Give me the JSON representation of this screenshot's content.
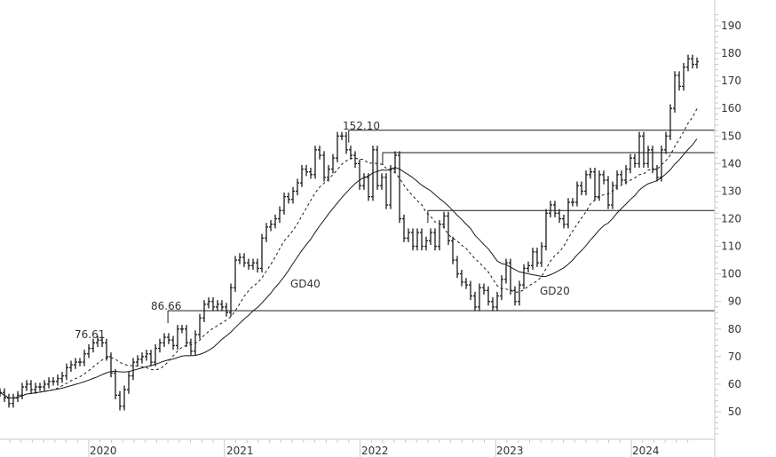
{
  "chart_data": {
    "type": "bar",
    "subtype": "price-bars-with-moving-averages",
    "period_start": "2019-05",
    "period_end": "2024-06",
    "close": [
      57,
      55,
      53,
      55,
      56,
      59,
      60,
      58,
      59,
      59,
      60,
      61,
      61,
      62,
      63,
      66,
      67,
      68,
      68,
      71,
      73,
      75,
      76,
      75,
      70,
      64,
      56,
      52,
      58,
      63,
      68,
      69,
      70,
      71,
      68,
      73,
      75,
      77,
      76,
      74,
      80,
      80,
      75,
      72,
      78,
      84,
      89,
      90,
      88,
      89,
      88,
      86,
      95,
      105,
      106,
      104,
      103,
      104,
      102,
      113,
      117,
      118,
      120,
      123,
      128,
      127,
      130,
      133,
      138,
      137,
      136,
      145,
      143,
      135,
      138,
      142,
      150,
      150,
      145,
      143,
      140,
      132,
      135,
      128,
      145,
      132,
      135,
      125,
      138,
      143,
      120,
      113,
      115,
      110,
      115,
      110,
      112,
      115,
      110,
      118,
      121,
      112,
      105,
      100,
      97,
      96,
      92,
      88,
      95,
      94,
      90,
      88,
      92,
      98,
      104,
      94,
      90,
      96,
      102,
      103,
      108,
      104,
      110,
      122,
      125,
      122,
      120,
      118,
      126,
      126,
      132,
      130,
      136,
      137,
      128,
      136,
      134,
      125,
      132,
      136,
      134,
      138,
      142,
      140,
      150,
      140,
      145,
      138,
      135,
      145,
      150,
      160,
      172,
      168,
      175,
      178,
      176,
      177
    ],
    "y_axis": {
      "min": 40,
      "max": 195,
      "ticks": [
        50,
        60,
        70,
        80,
        90,
        100,
        110,
        120,
        130,
        140,
        150,
        160,
        170,
        180,
        190
      ],
      "position": "right"
    },
    "x_axis": {
      "ticks": [
        "2020",
        "2021",
        "2022",
        "2023",
        "2024"
      ]
    },
    "moving_averages": [
      {
        "name": "GD20",
        "style": "dashed",
        "weeks": 20
      },
      {
        "name": "GD40",
        "style": "solid",
        "weeks": 40
      }
    ],
    "horizontal_levels": [
      {
        "value": 86.66,
        "label": "86.66",
        "from": "2020-08"
      },
      {
        "value": 152.1,
        "label": "152.10",
        "from": "2021-12"
      },
      {
        "value": 144.0,
        "label": "",
        "from": "2022-03"
      },
      {
        "value": 123.0,
        "label": "",
        "from": "2022-07"
      }
    ],
    "annotations": [
      {
        "label": "76.61",
        "value": 76.61,
        "at": "2020-01"
      }
    ],
    "grid": false,
    "colors": {
      "bars": "#1a1a1a",
      "lines": "#1a1a1a",
      "axis": "#c8c8c8",
      "text": "#333333"
    }
  }
}
